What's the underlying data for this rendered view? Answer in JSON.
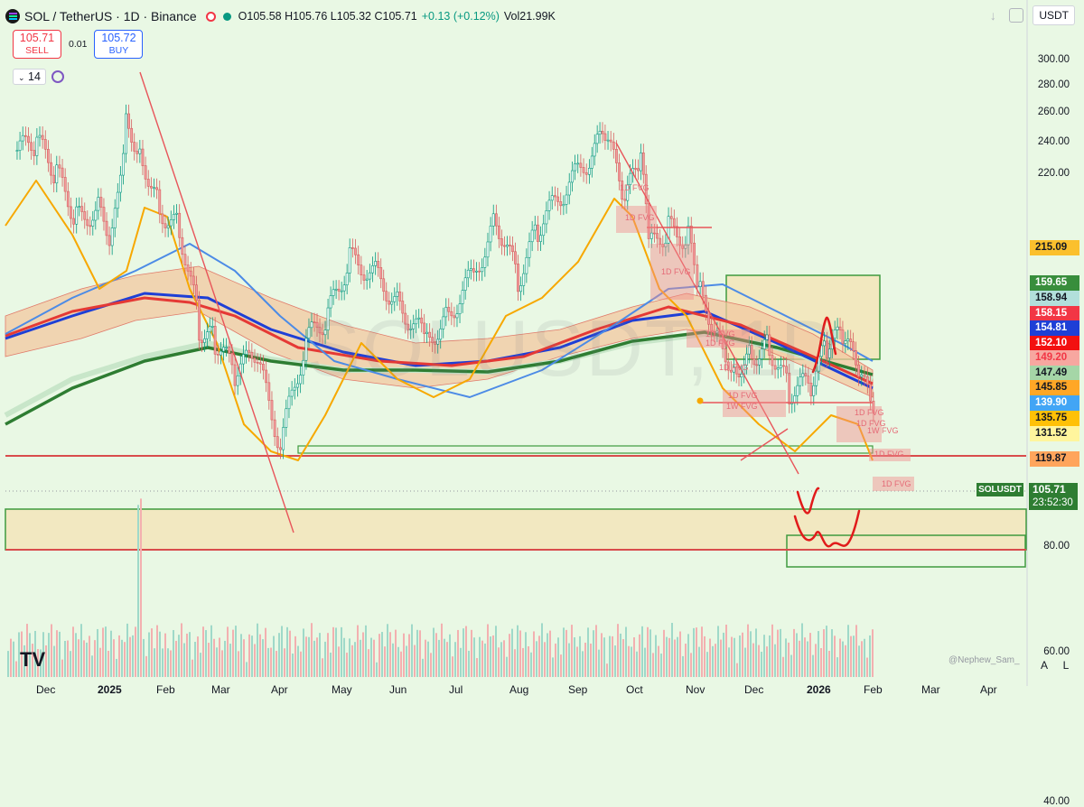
{
  "header": {
    "title": "SOL / TetherUS · 1D · Binance",
    "ohlc": "O105.58 H105.76 L105.32 C105.71",
    "change": "+0.13 (+0.12%)",
    "volume": "Vol21.99K",
    "status_color": "#089981",
    "currency": "USDT"
  },
  "trade": {
    "sell_price": "105.71",
    "sell_label": "SELL",
    "spread": "0.01",
    "buy_price": "105.72",
    "buy_label": "BUY"
  },
  "indicator": {
    "value": "14"
  },
  "watermark": "SOLUSDT, 1D",
  "branding": {
    "logo": "TV",
    "credit": "@Nephew_Sam_"
  },
  "scale_buttons": {
    "auto": "A",
    "log": "L"
  },
  "icons": [
    "solana-coin-icon",
    "sync-icon",
    "chevron-down-icon",
    "download-icon",
    "fullscreen-icon"
  ],
  "chart_data": {
    "type": "candlestick",
    "symbol": "SOLUSDT",
    "interval": "1D",
    "x_ticks": [
      "Dec",
      "2025",
      "Feb",
      "Mar",
      "Apr",
      "May",
      "Jun",
      "Jul",
      "Aug",
      "Sep",
      "Oct",
      "Nov",
      "Dec",
      "2026",
      "Feb",
      "Mar",
      "Apr"
    ],
    "y_ticks": [
      "300.00",
      "280.00",
      "260.00",
      "240.00",
      "220.00",
      "80.00",
      "60.00",
      "40.00"
    ],
    "y_scale": "log",
    "ylim": [
      36,
      320
    ],
    "close_series": [
      {
        "t": "2024-11-25",
        "c": 235
      },
      {
        "t": "2024-12-05",
        "c": 240
      },
      {
        "t": "2024-12-15",
        "c": 220
      },
      {
        "t": "2024-12-25",
        "c": 195
      },
      {
        "t": "2025-01-05",
        "c": 200
      },
      {
        "t": "2025-01-12",
        "c": 185
      },
      {
        "t": "2025-01-19",
        "c": 255
      },
      {
        "t": "2025-01-26",
        "c": 235
      },
      {
        "t": "2025-02-05",
        "c": 200
      },
      {
        "t": "2025-02-15",
        "c": 190
      },
      {
        "t": "2025-02-25",
        "c": 145
      },
      {
        "t": "2025-03-05",
        "c": 140
      },
      {
        "t": "2025-03-15",
        "c": 128
      },
      {
        "t": "2025-03-25",
        "c": 135
      },
      {
        "t": "2025-04-07",
        "c": 105
      },
      {
        "t": "2025-04-20",
        "c": 140
      },
      {
        "t": "2025-05-01",
        "c": 150
      },
      {
        "t": "2025-05-12",
        "c": 175
      },
      {
        "t": "2025-05-25",
        "c": 168
      },
      {
        "t": "2025-06-05",
        "c": 155
      },
      {
        "t": "2025-06-20",
        "c": 140
      },
      {
        "t": "2025-07-01",
        "c": 150
      },
      {
        "t": "2025-07-15",
        "c": 170
      },
      {
        "t": "2025-07-25",
        "c": 195
      },
      {
        "t": "2025-08-05",
        "c": 165
      },
      {
        "t": "2025-08-15",
        "c": 190
      },
      {
        "t": "2025-08-28",
        "c": 210
      },
      {
        "t": "2025-09-10",
        "c": 230
      },
      {
        "t": "2025-09-18",
        "c": 245
      },
      {
        "t": "2025-09-28",
        "c": 205
      },
      {
        "t": "2025-10-06",
        "c": 230
      },
      {
        "t": "2025-10-10",
        "c": 180
      },
      {
        "t": "2025-10-20",
        "c": 190
      },
      {
        "t": "2025-10-30",
        "c": 185
      },
      {
        "t": "2025-11-05",
        "c": 160
      },
      {
        "t": "2025-11-15",
        "c": 140
      },
      {
        "t": "2025-11-22",
        "c": 130
      },
      {
        "t": "2025-12-01",
        "c": 135
      },
      {
        "t": "2025-12-10",
        "c": 138
      },
      {
        "t": "2025-12-20",
        "c": 122
      },
      {
        "t": "2025-12-31",
        "c": 125
      },
      {
        "t": "2026-01-08",
        "c": 138
      },
      {
        "t": "2026-01-16",
        "c": 142
      },
      {
        "t": "2026-01-24",
        "c": 128
      },
      {
        "t": "2026-01-30",
        "c": 118
      },
      {
        "t": "2026-02-02",
        "c": 105.71
      }
    ],
    "price_labels": [
      {
        "value": "215.09",
        "color": "#fbc02d",
        "text": "#131722"
      },
      {
        "value": "159.65",
        "color": "#388e3c",
        "text": "#ffffff"
      },
      {
        "value": "158.94",
        "color": "#b2dfdb",
        "text": "#131722"
      },
      {
        "value": "158.15",
        "color": "#f23645",
        "text": "#ffffff"
      },
      {
        "value": "154.81",
        "color": "#1e3fd6",
        "text": "#ffffff"
      },
      {
        "value": "152.10",
        "color": "#f31010",
        "text": "#ffffff"
      },
      {
        "value": "149.20",
        "color": "#f7a7a0",
        "text": "#f23645"
      },
      {
        "value": "147.49",
        "color": "#a5d6a7",
        "text": "#131722"
      },
      {
        "value": "145.85",
        "color": "#ffa726",
        "text": "#131722"
      },
      {
        "value": "139.90",
        "color": "#42a5f5",
        "text": "#ffffff"
      },
      {
        "value": "135.75",
        "color": "#ffc107",
        "text": "#131722"
      },
      {
        "value": "131.52",
        "color": "#fff59d",
        "text": "#131722"
      },
      {
        "value": "119.87",
        "color": "#ffa55c",
        "text": "#131722"
      }
    ],
    "last_price": {
      "symbol": "SOLUSDT",
      "value": "105.71",
      "countdown": "23:52:30",
      "color": "#2e7d32"
    },
    "fvg_labels": [
      "1D FVG",
      "1D FVG",
      "1D FVG",
      "1D FVG",
      "1D FVG",
      "1D FVG",
      "1D FVG",
      "1W FVG",
      "1D FVG",
      "1D FVG",
      "1W FVG",
      "1D FVG",
      "1D FVG"
    ],
    "moving_average_colors": [
      "#f7a800",
      "#4c8be6",
      "#e53935",
      "#1e3fd6",
      "#2e7d32",
      "#c8e6c9",
      "#f4b183"
    ]
  }
}
